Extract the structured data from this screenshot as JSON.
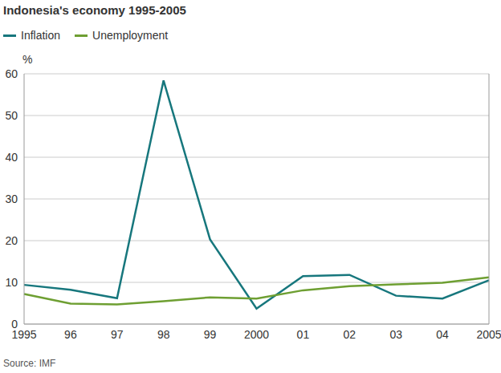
{
  "chart_data": {
    "type": "line",
    "title": "Indonesia's economy 1995-2005",
    "y_label": "%",
    "source": "Source: IMF",
    "categories": [
      "1995",
      "96",
      "97",
      "98",
      "99",
      "2000",
      "01",
      "02",
      "03",
      "04",
      "2005"
    ],
    "series": [
      {
        "name": "Inflation",
        "color": "#17777d",
        "values": [
          9.4,
          8.2,
          6.2,
          58.4,
          20.3,
          3.7,
          11.5,
          11.8,
          6.8,
          6.1,
          10.5
        ]
      },
      {
        "name": "Unemployment",
        "color": "#6e9f32",
        "values": [
          7.2,
          4.9,
          4.7,
          5.5,
          6.4,
          6.1,
          8.1,
          9.1,
          9.5,
          9.9,
          11.2
        ]
      }
    ],
    "ylim": [
      0,
      60
    ],
    "yticks": [
      0,
      10,
      20,
      30,
      40,
      50,
      60
    ],
    "grid": true,
    "legend": "top left"
  }
}
